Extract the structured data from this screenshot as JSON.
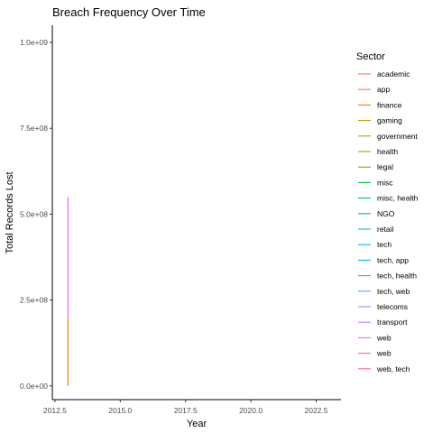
{
  "chart_data": {
    "type": "line",
    "title": "Breach Frequency Over Time",
    "xlabel": "Year",
    "ylabel": "Total Records Lost",
    "xlim": [
      2012.4,
      2023.45
    ],
    "ylim": [
      -40000000,
      1050000000
    ],
    "x_ticks": [
      2012.5,
      2015.0,
      2017.5,
      2020.0,
      2022.5
    ],
    "x_tick_labels": [
      "2012.5",
      "2015.0",
      "2017.5",
      "2020.0",
      "2022.5"
    ],
    "y_ticks": [
      0,
      250000000,
      500000000,
      750000000,
      1000000000
    ],
    "y_tick_labels": [
      "0.0e+00",
      "2.5e+08",
      "5.0e+08",
      "7.5e+08",
      "1.0e+09"
    ],
    "grid": false,
    "legend": {
      "title": "Sector",
      "position": "right"
    },
    "series": [
      {
        "name": "academic",
        "color": "#F8766D",
        "x": [],
        "y": []
      },
      {
        "name": "app",
        "color": "#EF7F48",
        "x": [],
        "y": []
      },
      {
        "name": "finance",
        "color": "#E08A00",
        "x": [
          2013,
          2013
        ],
        "y": [
          0,
          200000000
        ]
      },
      {
        "name": "gaming",
        "color": "#CD9600",
        "x": [],
        "y": []
      },
      {
        "name": "government",
        "color": "#B89F00",
        "x": [],
        "y": []
      },
      {
        "name": "health",
        "color": "#A3A500",
        "x": [],
        "y": []
      },
      {
        "name": "legal",
        "color": "#6BB100",
        "x": [],
        "y": []
      },
      {
        "name": "misc",
        "color": "#00BA38",
        "x": [],
        "y": []
      },
      {
        "name": "misc, health",
        "color": "#00BF6F",
        "x": [],
        "y": []
      },
      {
        "name": "NGO",
        "color": "#00C08B",
        "x": [],
        "y": []
      },
      {
        "name": "retail",
        "color": "#00BFC4",
        "x": [],
        "y": []
      },
      {
        "name": "tech",
        "color": "#00B9E3",
        "x": [],
        "y": []
      },
      {
        "name": "tech, app",
        "color": "#00B0F6",
        "x": [],
        "y": []
      },
      {
        "name": "tech, health",
        "color": "#35A2FF",
        "x": [],
        "y": []
      },
      {
        "name": "tech, web",
        "color": "#619CFF",
        "x": [],
        "y": []
      },
      {
        "name": "telecoms",
        "color": "#9590FF",
        "x": [],
        "y": []
      },
      {
        "name": "transport",
        "color": "#C77CFF",
        "x": [],
        "y": []
      },
      {
        "name": "web",
        "color": "#E76BF3",
        "x": [
          2013,
          2013
        ],
        "y": [
          200000000,
          550000000
        ]
      },
      {
        "name": "web",
        "color": "#FF62BC",
        "x": [],
        "y": []
      },
      {
        "name": "web, tech",
        "color": "#FF6C91",
        "x": [],
        "y": []
      }
    ]
  }
}
